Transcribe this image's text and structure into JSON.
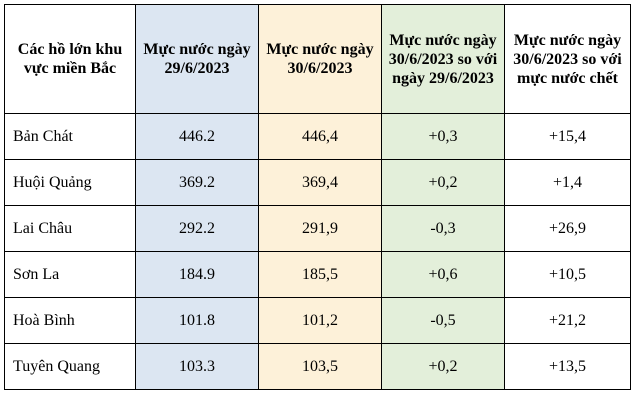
{
  "table": {
    "header": [
      "Các hồ lớn khu vực miền Bắc",
      "Mực nước ngày 29/6/2023",
      "Mực nước ngày 30/6/2023",
      "Mực nước ngày 30/6/2023 so với ngày 29/6/2023",
      "Mực nước ngày 30/6/2023 so với mực nước chết"
    ],
    "rows": [
      [
        "Bản Chát",
        "446.2",
        "446,4",
        "+0,3",
        "+15,4"
      ],
      [
        "Huội Quảng",
        "369.2",
        "369,4",
        "+0,2",
        "+1,4"
      ],
      [
        "Lai Châu",
        "292.2",
        "291,9",
        "-0,3",
        "+26,9"
      ],
      [
        "Sơn La",
        "184.9",
        "185,5",
        "+0,6",
        "+10,5"
      ],
      [
        "Hoà Bình",
        "101.8",
        "101,2",
        "-0,5",
        "+21,2"
      ],
      [
        "Tuyên Quang",
        "103.3",
        "103,5",
        "+0,2",
        "+13,5"
      ]
    ]
  }
}
